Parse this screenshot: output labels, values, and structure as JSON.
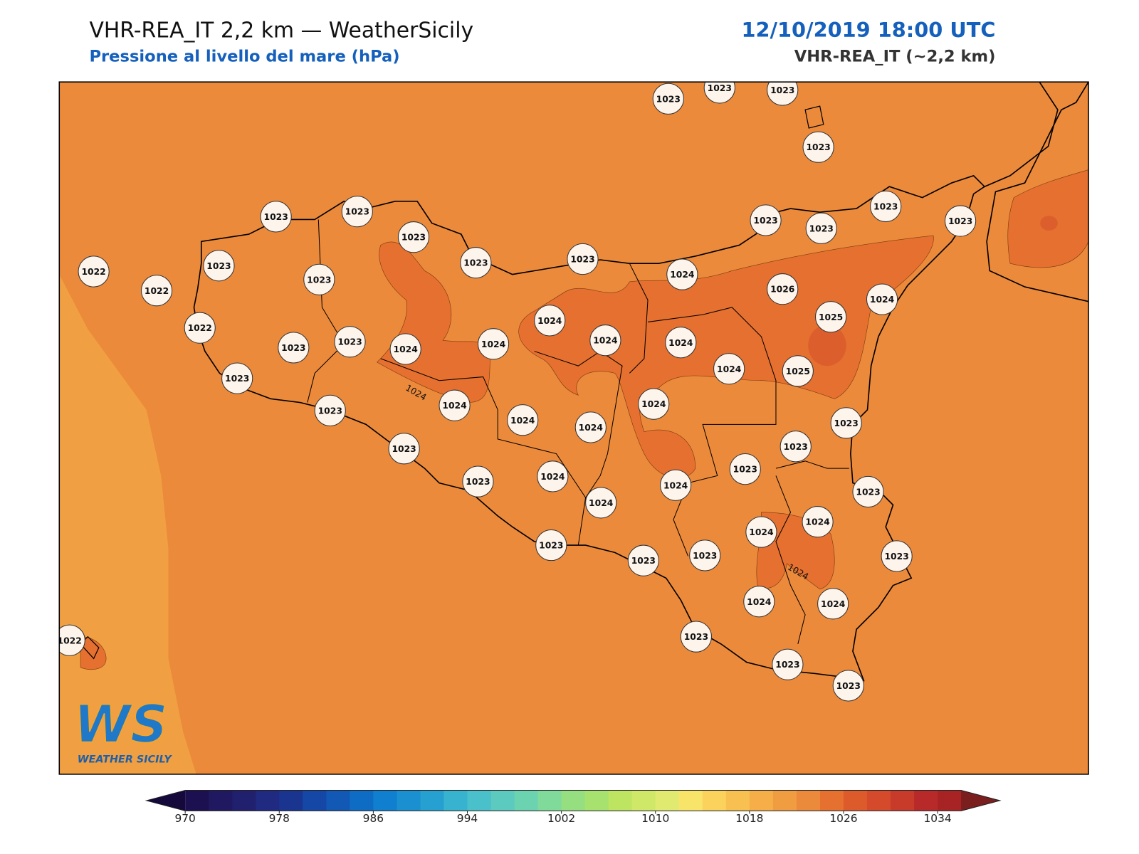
{
  "header": {
    "title": "VHR-REA_IT 2,2 km — WeatherSicily",
    "subtitle": "Pressione al livello del mare (hPa)",
    "date": "12/10/2019 18:00 UTC",
    "model": "VHR-REA_IT (~2,2 km)"
  },
  "stations": [
    1023,
    1023,
    1023,
    1023,
    1023,
    1023,
    1023,
    1023,
    1023,
    1023,
    1023,
    1023,
    1023,
    1022,
    1022,
    1023,
    1023,
    1022,
    1023,
    1023,
    1024,
    1024,
    1024,
    1024,
    1024,
    1024,
    1026,
    1025,
    1024,
    1024,
    1025,
    1023,
    1023,
    1024,
    1024,
    1024,
    1024,
    1023,
    1023,
    1023,
    1023,
    1023,
    1024,
    1024,
    1024,
    1023,
    1024,
    1024,
    1023,
    1023,
    1023,
    1023,
    1024,
    1024,
    1022,
    1023,
    1023,
    1023
  ],
  "contour_labels": [
    "1024",
    "1024"
  ],
  "logo": {
    "mark": "WS",
    "name": "WEATHER SICILY"
  },
  "colorbar": {
    "lim": [
      970,
      1036
    ],
    "ticks": [
      970,
      978,
      986,
      994,
      1002,
      1010,
      1018,
      1026,
      1034
    ],
    "under": "#15083a",
    "over": "#7a1e1e",
    "colors": [
      "#1d1050",
      "#201860",
      "#21206e",
      "#1f2a80",
      "#1a3590",
      "#1548a6",
      "#1258b5",
      "#0f6cc5",
      "#117fcf",
      "#1a90d0",
      "#26a0d0",
      "#38b3cf",
      "#4ac0ca",
      "#5ccabf",
      "#6cd3b0",
      "#80da9a",
      "#95df80",
      "#a8e26e",
      "#bde562",
      "#d0e868",
      "#e0ea70",
      "#f9e46a",
      "#fad25c",
      "#f8c050",
      "#f5ae48",
      "#f09c40",
      "#ec8a3b",
      "#e5702f",
      "#dd5a2a",
      "#d54a2a",
      "#c83a2a",
      "#b82a2a",
      "#a82424"
    ]
  }
}
